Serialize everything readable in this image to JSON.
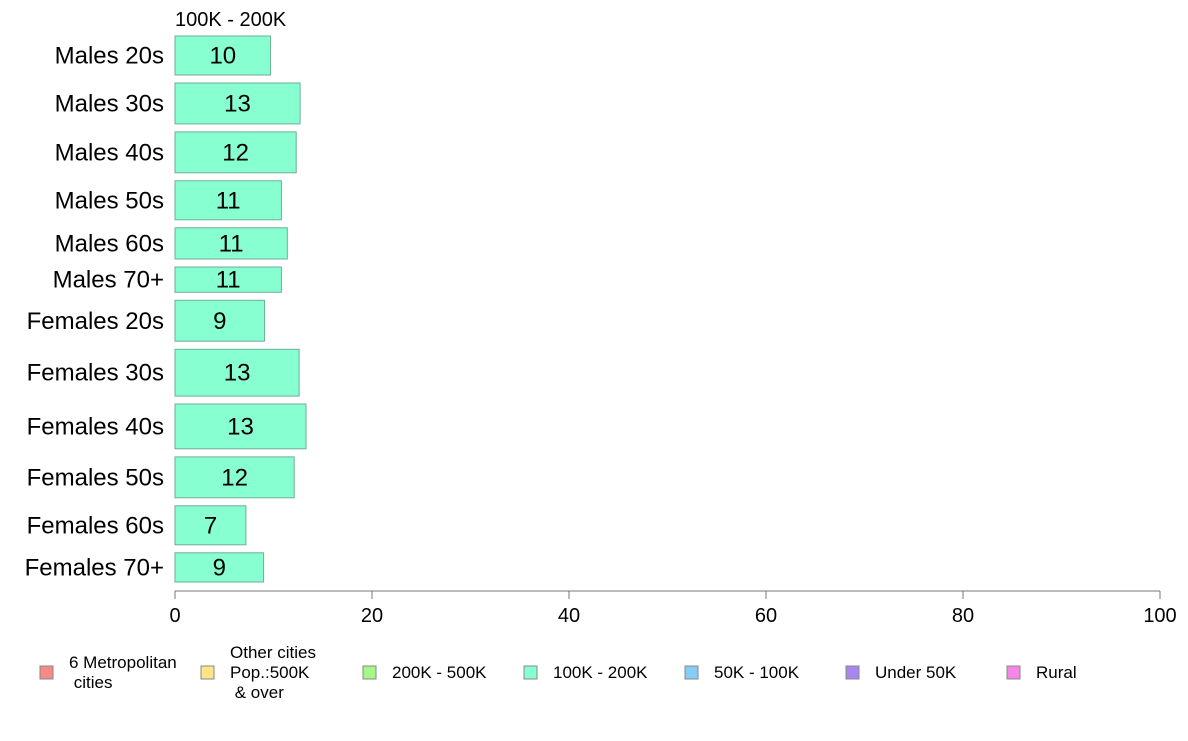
{
  "chart_data": {
    "type": "bar",
    "orientation": "horizontal",
    "panel_title": "100K - 200K",
    "categories": [
      "Males 20s",
      "Males 30s",
      "Males 40s",
      "Males 50s",
      "Males 60s",
      "Males 70+",
      "Females 20s",
      "Females 30s",
      "Females 40s",
      "Females 50s",
      "Females 60s",
      "Females 70+"
    ],
    "values": [
      9.7,
      12.7,
      12.3,
      10.8,
      11.4,
      10.8,
      9.1,
      12.6,
      13.3,
      12.1,
      7.2,
      9.0
    ],
    "value_labels": [
      "10",
      "13",
      "12",
      "11",
      "11",
      "11",
      "9",
      "13",
      "13",
      "12",
      "7",
      "9"
    ],
    "bar_weights": [
      1.0,
      1.05,
      1.05,
      1.0,
      0.8,
      0.65,
      1.05,
      1.2,
      1.15,
      1.05,
      1.0,
      0.75
    ],
    "bar_color": "#87FFD1",
    "xlim": [
      0,
      100
    ],
    "xticks": [
      "0",
      "20",
      "40",
      "60",
      "80",
      "100"
    ],
    "grid": false,
    "legend": {
      "placement": "bottom",
      "items": [
        {
          "label_lines": [
            "6 Metropolitan",
            " cities"
          ],
          "color": "#F58A87"
        },
        {
          "label_lines": [
            "Other cities",
            "Pop.:500K",
            " & over"
          ],
          "color": "#FBE584"
        },
        {
          "label_lines": [
            "200K - 500K"
          ],
          "color": "#A5F787"
        },
        {
          "label_lines": [
            "100K - 200K"
          ],
          "color": "#87FFD1"
        },
        {
          "label_lines": [
            "50K - 100K"
          ],
          "color": "#87CBF7"
        },
        {
          "label_lines": [
            "Under 50K"
          ],
          "color": "#A687F0"
        },
        {
          "label_lines": [
            "Rural"
          ],
          "color": "#F587E4"
        }
      ]
    }
  }
}
